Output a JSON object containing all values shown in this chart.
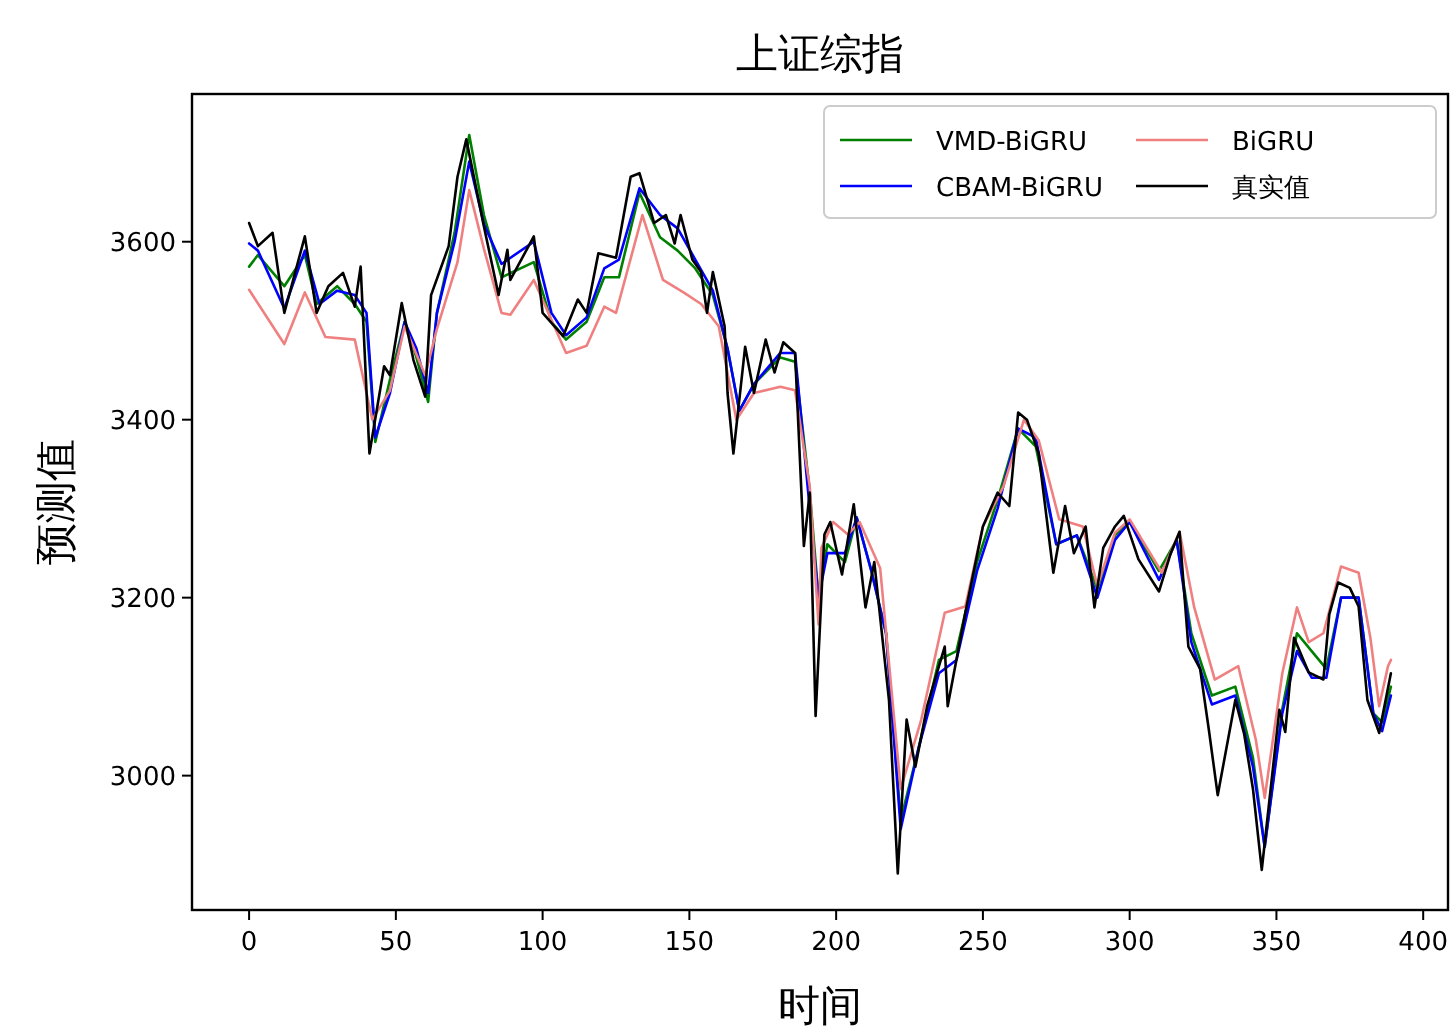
{
  "chart_data": {
    "type": "line",
    "title": "上证综指",
    "xlabel": "时间",
    "ylabel": "预测值",
    "xlim": [
      -19.45,
      408.45
    ],
    "ylim": [
      2849,
      3766
    ],
    "xticks": [
      0,
      50,
      100,
      150,
      200,
      250,
      300,
      350,
      400
    ],
    "yticks": [
      3000,
      3200,
      3400,
      3600
    ],
    "legend": "top right",
    "grid": false,
    "series": [
      {
        "name": "VMD-BiGRU",
        "color": "#008000",
        "x": [
          0,
          3,
          12,
          19,
          23,
          30,
          36,
          40,
          43,
          48,
          53,
          57,
          61,
          64,
          70,
          75,
          80,
          86,
          97,
          103,
          108,
          115,
          121,
          126,
          133,
          140,
          146,
          152,
          158,
          163,
          167,
          172,
          181,
          186,
          191,
          194,
          197,
          203,
          207,
          212,
          217,
          222,
          228,
          235,
          241,
          248,
          255,
          262,
          268,
          275,
          282,
          289,
          295,
          300,
          310,
          316,
          321,
          328,
          336,
          342,
          346,
          352,
          357,
          362,
          367,
          372,
          378,
          383,
          386,
          389
        ],
        "values": [
          3572,
          3585,
          3550,
          3585,
          3530,
          3550,
          3530,
          3510,
          3375,
          3445,
          3510,
          3470,
          3420,
          3520,
          3610,
          3720,
          3630,
          3560,
          3577,
          3510,
          3490,
          3510,
          3560,
          3560,
          3655,
          3605,
          3590,
          3570,
          3540,
          3480,
          3410,
          3440,
          3470,
          3465,
          3320,
          3200,
          3260,
          3240,
          3290,
          3230,
          3160,
          2950,
          3030,
          3130,
          3140,
          3240,
          3310,
          3390,
          3370,
          3260,
          3270,
          3210,
          3270,
          3285,
          3230,
          3265,
          3160,
          3090,
          3100,
          3020,
          2920,
          3075,
          3160,
          3140,
          3120,
          3200,
          3200,
          3070,
          3060,
          3100
        ]
      },
      {
        "name": "CBAM-BiGRU",
        "color": "#0000ff",
        "x": [
          0,
          3,
          12,
          19,
          24,
          30,
          36,
          40,
          43,
          48,
          53,
          57,
          61,
          64,
          70,
          75,
          80,
          86,
          97,
          103,
          108,
          115,
          121,
          126,
          133,
          140,
          146,
          152,
          158,
          163,
          167,
          172,
          181,
          186,
          191,
          194,
          197,
          203,
          207,
          212,
          217,
          222,
          228,
          235,
          241,
          248,
          255,
          262,
          268,
          275,
          282,
          289,
          295,
          300,
          310,
          316,
          321,
          328,
          336,
          342,
          346,
          352,
          357,
          362,
          367,
          372,
          378,
          383,
          386,
          389
        ],
        "values": [
          3598,
          3590,
          3525,
          3590,
          3530,
          3545,
          3540,
          3520,
          3380,
          3430,
          3510,
          3480,
          3430,
          3520,
          3600,
          3690,
          3620,
          3575,
          3600,
          3520,
          3495,
          3515,
          3570,
          3580,
          3660,
          3630,
          3615,
          3580,
          3545,
          3480,
          3410,
          3440,
          3475,
          3475,
          3300,
          3200,
          3250,
          3250,
          3290,
          3230,
          3160,
          2940,
          3030,
          3115,
          3130,
          3230,
          3300,
          3390,
          3380,
          3260,
          3270,
          3200,
          3265,
          3285,
          3220,
          3265,
          3150,
          3080,
          3090,
          3010,
          2920,
          3070,
          3140,
          3110,
          3110,
          3200,
          3200,
          3070,
          3050,
          3090
        ]
      },
      {
        "name": "BiGRU",
        "color": "#f08080",
        "x": [
          0,
          12,
          19,
          26,
          36,
          42,
          48,
          53,
          60,
          64,
          71,
          75,
          80,
          86,
          89,
          97,
          108,
          115,
          121,
          125,
          134,
          141,
          148,
          154,
          160,
          166,
          172,
          181,
          186,
          191,
          194,
          195,
          199,
          204,
          208,
          215,
          222,
          229,
          237,
          244,
          250,
          257,
          264,
          269,
          276,
          284,
          289,
          295,
          300,
          311,
          317,
          322,
          329,
          337,
          343,
          346,
          352,
          357,
          361,
          366,
          372,
          378,
          382,
          385,
          388,
          389
        ],
        "values": [
          3546,
          3485,
          3543,
          3493,
          3490,
          3400,
          3433,
          3505,
          3450,
          3502,
          3577,
          3658,
          3592,
          3520,
          3518,
          3557,
          3475,
          3483,
          3527,
          3520,
          3630,
          3557,
          3543,
          3530,
          3505,
          3400,
          3430,
          3437,
          3433,
          3325,
          3170,
          3256,
          3285,
          3271,
          3285,
          3233,
          2985,
          3063,
          3183,
          3190,
          3280,
          3325,
          3400,
          3377,
          3288,
          3280,
          3213,
          3273,
          3288,
          3228,
          3274,
          3189,
          3108,
          3123,
          3040,
          2975,
          3115,
          3189,
          3150,
          3160,
          3235,
          3228,
          3155,
          3078,
          3123,
          3130
        ]
      },
      {
        "name": "真实值",
        "color": "#000000",
        "x": [
          0,
          3,
          8,
          12,
          19,
          23,
          27,
          32,
          36,
          38,
          41,
          46,
          48,
          52,
          56,
          60,
          62,
          68,
          71,
          74,
          80,
          85,
          88,
          89,
          97,
          100,
          107,
          112,
          115,
          119,
          125,
          130,
          133,
          138,
          142,
          145,
          147,
          151,
          154,
          156,
          158,
          162,
          163,
          165,
          169,
          172,
          176,
          179,
          182,
          186,
          189,
          191,
          193,
          196,
          198,
          202,
          206,
          210,
          213,
          218,
          221,
          224,
          227,
          231,
          237,
          238,
          244,
          250,
          255,
          259,
          262,
          265,
          269,
          274,
          278,
          281,
          285,
          288,
          291,
          295,
          298,
          303,
          310,
          314,
          317,
          320,
          324,
          327,
          330,
          336,
          339,
          342,
          345,
          351,
          353,
          356,
          361,
          366,
          368,
          371,
          375,
          378,
          381,
          385,
          389
        ],
        "values": [
          3621,
          3595,
          3610,
          3520,
          3606,
          3520,
          3550,
          3565,
          3527,
          3572,
          3362,
          3460,
          3450,
          3531,
          3467,
          3426,
          3540,
          3595,
          3673,
          3715,
          3617,
          3540,
          3591,
          3557,
          3606,
          3520,
          3494,
          3535,
          3520,
          3587,
          3582,
          3673,
          3677,
          3621,
          3630,
          3598,
          3630,
          3580,
          3566,
          3520,
          3566,
          3505,
          3430,
          3362,
          3482,
          3430,
          3490,
          3453,
          3487,
          3475,
          3258,
          3318,
          3067,
          3271,
          3285,
          3226,
          3305,
          3189,
          3240,
          3085,
          2890,
          3063,
          3010,
          3078,
          3145,
          3078,
          3183,
          3280,
          3318,
          3303,
          3408,
          3400,
          3362,
          3228,
          3303,
          3250,
          3280,
          3189,
          3256,
          3280,
          3292,
          3243,
          3207,
          3250,
          3274,
          3145,
          3120,
          3051,
          2978,
          3085,
          3047,
          2985,
          2894,
          3074,
          3049,
          3155,
          3116,
          3108,
          3181,
          3217,
          3211,
          3190,
          3085,
          3048,
          3115
        ]
      }
    ]
  }
}
